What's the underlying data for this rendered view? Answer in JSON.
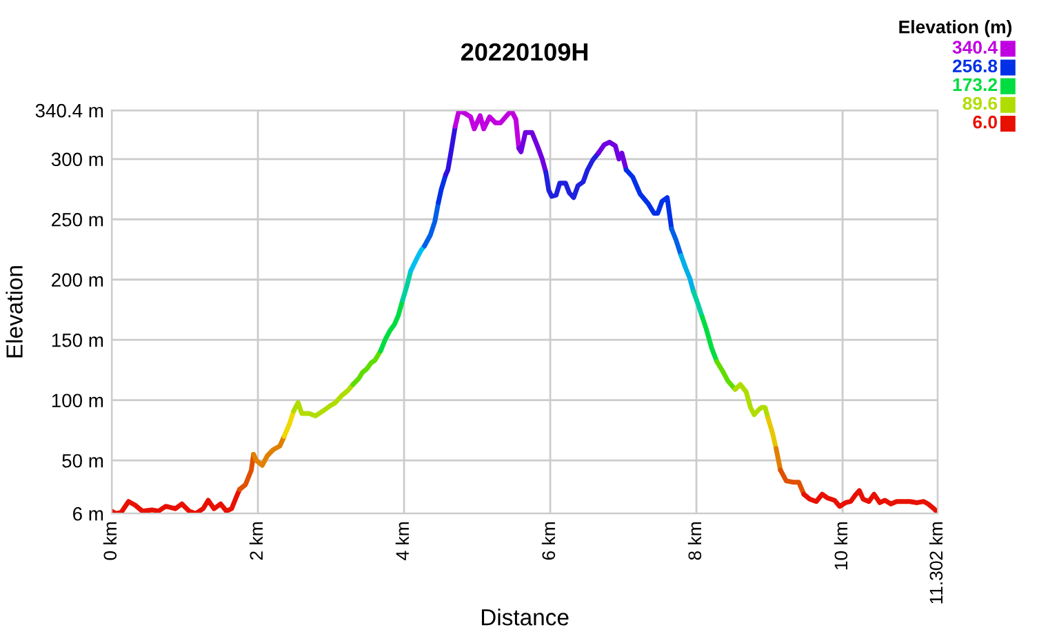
{
  "chart_data": {
    "type": "line",
    "title": "20220109H",
    "xlabel": "Distance",
    "ylabel": "Elevation",
    "clabel": "Elevation (m)",
    "cticks": [
      {
        "value": 340.4,
        "label": "340.4"
      },
      {
        "value": 256.8,
        "label": "256.8"
      },
      {
        "value": 173.2,
        "label": "173.2"
      },
      {
        "value": 89.6,
        "label": "89.6"
      },
      {
        "value": 6.0,
        "label": "6.0"
      }
    ],
    "xlim": [
      0,
      11.302
    ],
    "xticks": [
      {
        "value": 0,
        "label": "0 km"
      },
      {
        "value": 2,
        "label": "2 km"
      },
      {
        "value": 4,
        "label": "4 km"
      },
      {
        "value": 6,
        "label": "6 km"
      },
      {
        "value": 8,
        "label": "8 km"
      },
      {
        "value": 10,
        "label": "10 km"
      },
      {
        "value": 11.302,
        "label": "11.302 km"
      }
    ],
    "ylim": [
      6,
      340.4
    ],
    "yticks": [
      {
        "value": 6,
        "label": "6 m"
      },
      {
        "value": 50,
        "label": "50 m"
      },
      {
        "value": 100,
        "label": "100 m"
      },
      {
        "value": 150,
        "label": "150 m"
      },
      {
        "value": 200,
        "label": "200 m"
      },
      {
        "value": 250,
        "label": "250 m"
      },
      {
        "value": 300,
        "label": "300 m"
      },
      {
        "value": 340.4,
        "label": "340.4 m"
      }
    ],
    "grid": true,
    "marker": "none",
    "line_style": "solid",
    "series": [
      {
        "color": "#e81000",
        "x": [
          0.0,
          0.06,
          0.13,
          0.23,
          0.32,
          0.42,
          0.55,
          0.64,
          0.74,
          0.87,
          0.96,
          1.06,
          1.15,
          1.25,
          1.32,
          1.4,
          1.49,
          1.57,
          1.64,
          1.7,
          1.75
        ],
        "values": [
          8,
          6,
          7,
          16,
          13,
          8,
          9,
          8,
          12,
          10,
          14,
          8,
          6,
          10,
          17,
          10,
          14,
          8,
          10,
          19,
          26
        ]
      },
      {
        "color": "#e05000",
        "x": [
          1.75,
          1.83,
          1.91,
          1.94
        ],
        "values": [
          26,
          30,
          42,
          55
        ]
      },
      {
        "color": "#e08000",
        "x": [
          1.94,
          1.98,
          2.06,
          2.13,
          2.21,
          2.3,
          2.36
        ],
        "values": [
          55,
          50,
          46,
          54,
          59,
          62,
          70
        ]
      },
      {
        "color": "#f0d800",
        "x": [
          2.36,
          2.43,
          2.49
        ],
        "values": [
          70,
          80,
          91
        ]
      },
      {
        "color": "#b0dd00",
        "x": [
          2.49,
          2.55,
          2.6,
          2.7,
          2.79,
          2.89,
          2.98,
          3.06,
          3.15,
          3.23,
          3.3
        ],
        "values": [
          91,
          98,
          89,
          89,
          87,
          91,
          95,
          98,
          104,
          108,
          113
        ]
      },
      {
        "color": "#60dd00",
        "x": [
          3.3,
          3.38,
          3.43,
          3.49,
          3.55,
          3.6,
          3.68
        ],
        "values": [
          113,
          118,
          123,
          126,
          131,
          133,
          141
        ]
      },
      {
        "color": "#00dd40",
        "x": [
          3.68,
          3.74,
          3.81,
          3.87,
          3.92,
          3.98
        ],
        "values": [
          141,
          150,
          158,
          163,
          170,
          183
        ]
      },
      {
        "color": "#00d0a0",
        "x": [
          3.98,
          4.04,
          4.09
        ],
        "values": [
          183,
          195,
          207
        ]
      },
      {
        "color": "#00c0f0",
        "x": [
          4.09,
          4.17,
          4.23,
          4.28
        ],
        "values": [
          207,
          217,
          224,
          228
        ]
      },
      {
        "color": "#0060e8",
        "x": [
          4.28,
          4.36,
          4.42,
          4.47
        ],
        "values": [
          228,
          237,
          248,
          264
        ]
      },
      {
        "color": "#0030e8",
        "x": [
          4.47,
          4.51,
          4.57
        ],
        "values": [
          264,
          275,
          287
        ]
      },
      {
        "color": "#3010e0",
        "x": [
          4.57,
          4.6,
          4.64,
          4.7
        ],
        "values": [
          287,
          291,
          305,
          327
        ]
      },
      {
        "color": "#c000e0",
        "x": [
          4.7,
          4.75,
          4.83,
          4.91,
          4.96,
          5.04,
          5.09,
          5.17,
          5.25,
          5.32,
          5.42,
          5.47,
          5.53,
          5.57
        ],
        "values": [
          327,
          340,
          338,
          335,
          325,
          336,
          325,
          335,
          330,
          330,
          337,
          340,
          333,
          309
        ]
      },
      {
        "color": "#7000e0",
        "x": [
          5.57,
          5.6,
          5.66,
          5.75,
          5.83,
          5.89,
          5.94
        ],
        "values": [
          309,
          306,
          322,
          322,
          310,
          300,
          289
        ]
      },
      {
        "color": "#2020e0",
        "x": [
          5.94,
          5.98,
          6.02,
          6.08,
          6.13,
          6.21,
          6.26,
          6.32,
          6.38,
          6.45,
          6.51,
          6.58,
          6.66
        ],
        "values": [
          289,
          274,
          269,
          270,
          280,
          280,
          272,
          268,
          278,
          281,
          291,
          299,
          305
        ]
      },
      {
        "color": "#7000e0",
        "x": [
          6.66,
          6.74,
          6.81,
          6.89,
          6.94,
          6.98,
          7.04
        ],
        "values": [
          305,
          312,
          314,
          311,
          300,
          305,
          291
        ]
      },
      {
        "color": "#0030e8",
        "x": [
          7.04,
          7.13,
          7.23,
          7.34,
          7.42,
          7.47,
          7.53,
          7.6,
          7.66
        ],
        "values": [
          291,
          285,
          271,
          263,
          255,
          255,
          265,
          268,
          242
        ]
      },
      {
        "color": "#0060e8",
        "x": [
          7.66,
          7.72,
          7.79
        ],
        "values": [
          242,
          233,
          220
        ]
      },
      {
        "color": "#00b0e8",
        "x": [
          7.79,
          7.85,
          7.91,
          7.96
        ],
        "values": [
          220,
          210,
          201,
          190
        ]
      },
      {
        "color": "#00d0a0",
        "x": [
          7.96,
          8.02,
          8.08
        ],
        "values": [
          190,
          180,
          169
        ]
      },
      {
        "color": "#00dd40",
        "x": [
          8.08,
          8.13,
          8.21,
          8.28
        ],
        "values": [
          169,
          160,
          143,
          132
        ]
      },
      {
        "color": "#60dd00",
        "x": [
          8.28,
          8.36,
          8.43,
          8.53
        ],
        "values": [
          132,
          124,
          116,
          109
        ]
      },
      {
        "color": "#b0dd00",
        "x": [
          8.53,
          8.6,
          8.68,
          8.74,
          8.79,
          8.85,
          8.89,
          8.94,
          8.98
        ],
        "values": [
          109,
          113,
          107,
          94,
          88,
          92,
          94,
          94,
          85
        ]
      },
      {
        "color": "#e8c800",
        "x": [
          8.98,
          9.04,
          9.09
        ],
        "values": [
          85,
          73,
          60
        ]
      },
      {
        "color": "#e08000",
        "x": [
          9.09,
          9.15
        ],
        "values": [
          60,
          42
        ]
      },
      {
        "color": "#e05000",
        "x": [
          9.15,
          9.23,
          9.32,
          9.4,
          9.47
        ],
        "values": [
          42,
          33,
          32,
          32,
          22
        ]
      },
      {
        "color": "#e81000",
        "x": [
          9.47,
          9.55,
          9.64,
          9.72,
          9.79,
          9.89,
          9.96,
          10.04,
          10.11,
          10.17,
          10.23,
          10.28,
          10.36,
          10.43,
          10.51,
          10.58,
          10.66,
          10.74,
          10.83,
          10.92,
          11.02,
          11.11,
          11.17,
          11.25,
          11.3
        ],
        "values": [
          22,
          18,
          16,
          22,
          19,
          17,
          12,
          15,
          16,
          21,
          25,
          18,
          16,
          22,
          15,
          17,
          14,
          16,
          16,
          16,
          15,
          16,
          14,
          10,
          7
        ]
      }
    ]
  }
}
